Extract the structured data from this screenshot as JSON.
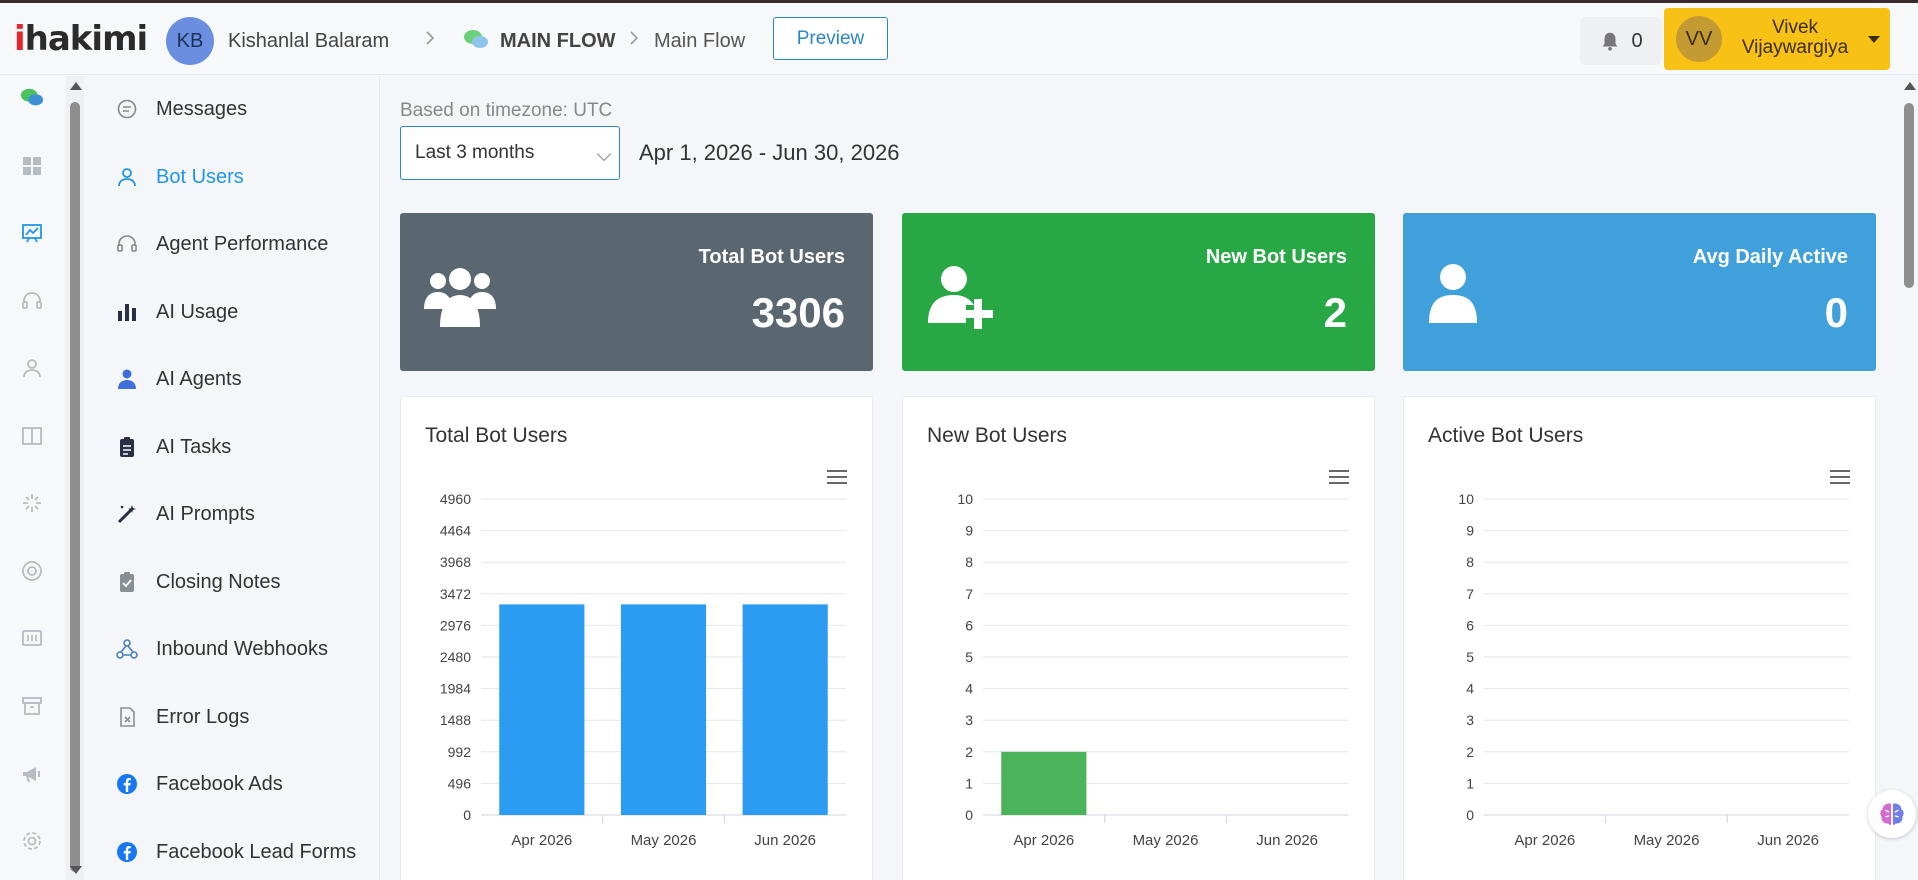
{
  "brand": {
    "logo": "ihakimi"
  },
  "header": {
    "workspace_initials": "KB",
    "workspace_name": "Kishanlal Balaram",
    "flow_group": "MAIN FLOW",
    "flow_name": "Main Flow",
    "preview_label": "Preview",
    "notification_count": "0",
    "user_initials": "VV",
    "user_name_line1": "Vivek",
    "user_name_line2": "Vijaywargiya"
  },
  "rail_icons": [
    "chat-bubbles-icon",
    "dashboard-grid-icon",
    "analytics-chart-icon",
    "headset-icon",
    "user-icon",
    "book-icon",
    "sparkle-icon",
    "lifebuoy-icon",
    "form-icon",
    "archive-icon",
    "megaphone-icon",
    "settings-gear-icon"
  ],
  "subnav": {
    "items": [
      {
        "label": "Messages",
        "icon": "message-icon"
      },
      {
        "label": "Bot Users",
        "icon": "user-outline-icon",
        "active": true
      },
      {
        "label": "Agent Performance",
        "icon": "headset-icon"
      },
      {
        "label": "AI Usage",
        "icon": "bar-chart-icon"
      },
      {
        "label": "AI Agents",
        "icon": "agent-icon"
      },
      {
        "label": "AI Tasks",
        "icon": "clipboard-list-icon"
      },
      {
        "label": "AI Prompts",
        "icon": "magic-wand-icon"
      },
      {
        "label": "Closing Notes",
        "icon": "clipboard-check-icon"
      },
      {
        "label": "Inbound Webhooks",
        "icon": "webhook-icon"
      },
      {
        "label": "Error Logs",
        "icon": "error-file-icon"
      },
      {
        "label": "Facebook Ads",
        "icon": "facebook-icon"
      },
      {
        "label": "Facebook Lead Forms",
        "icon": "facebook-icon"
      }
    ]
  },
  "filters": {
    "timezone_label": "Based on timezone: UTC",
    "range_selected": "Last 3 months",
    "date_range": "Apr 1, 2026 - Jun 30, 2026"
  },
  "stats": [
    {
      "label": "Total Bot Users",
      "value": "3306",
      "color": "#5b6770",
      "icon": "users-group-icon"
    },
    {
      "label": "New Bot Users",
      "value": "2",
      "color": "#28a745",
      "icon": "user-plus-icon"
    },
    {
      "label": "Avg Daily Active",
      "value": "0",
      "color": "#40a0dc",
      "icon": "user-solid-icon"
    }
  ],
  "chart_data": [
    {
      "type": "bar",
      "title": "Total Bot Users",
      "categories": [
        "Apr 2026",
        "May 2026",
        "Jun 2026"
      ],
      "values": [
        3306,
        3306,
        3306
      ],
      "yticks": [
        "0",
        "496",
        "992",
        "1488",
        "1984",
        "2480",
        "2976",
        "3472",
        "3968",
        "4464",
        "4960"
      ],
      "ylim": [
        0,
        4960
      ],
      "color": "#2b9cf2",
      "grid": true
    },
    {
      "type": "bar",
      "title": "New Bot Users",
      "categories": [
        "Apr 2026",
        "May 2026",
        "Jun 2026"
      ],
      "values": [
        2,
        0,
        0
      ],
      "yticks": [
        "0",
        "1",
        "2",
        "3",
        "4",
        "5",
        "6",
        "7",
        "8",
        "9",
        "10"
      ],
      "ylim": [
        0,
        10
      ],
      "color": "#4bb35a",
      "grid": true
    },
    {
      "type": "bar",
      "title": "Active Bot Users",
      "categories": [
        "Apr 2026",
        "May 2026",
        "Jun 2026"
      ],
      "values": [
        0,
        0,
        0
      ],
      "yticks": [
        "0",
        "1",
        "2",
        "3",
        "4",
        "5",
        "6",
        "7",
        "8",
        "9",
        "10"
      ],
      "ylim": [
        0,
        10
      ],
      "color": "#2b9cf2",
      "grid": true
    }
  ]
}
